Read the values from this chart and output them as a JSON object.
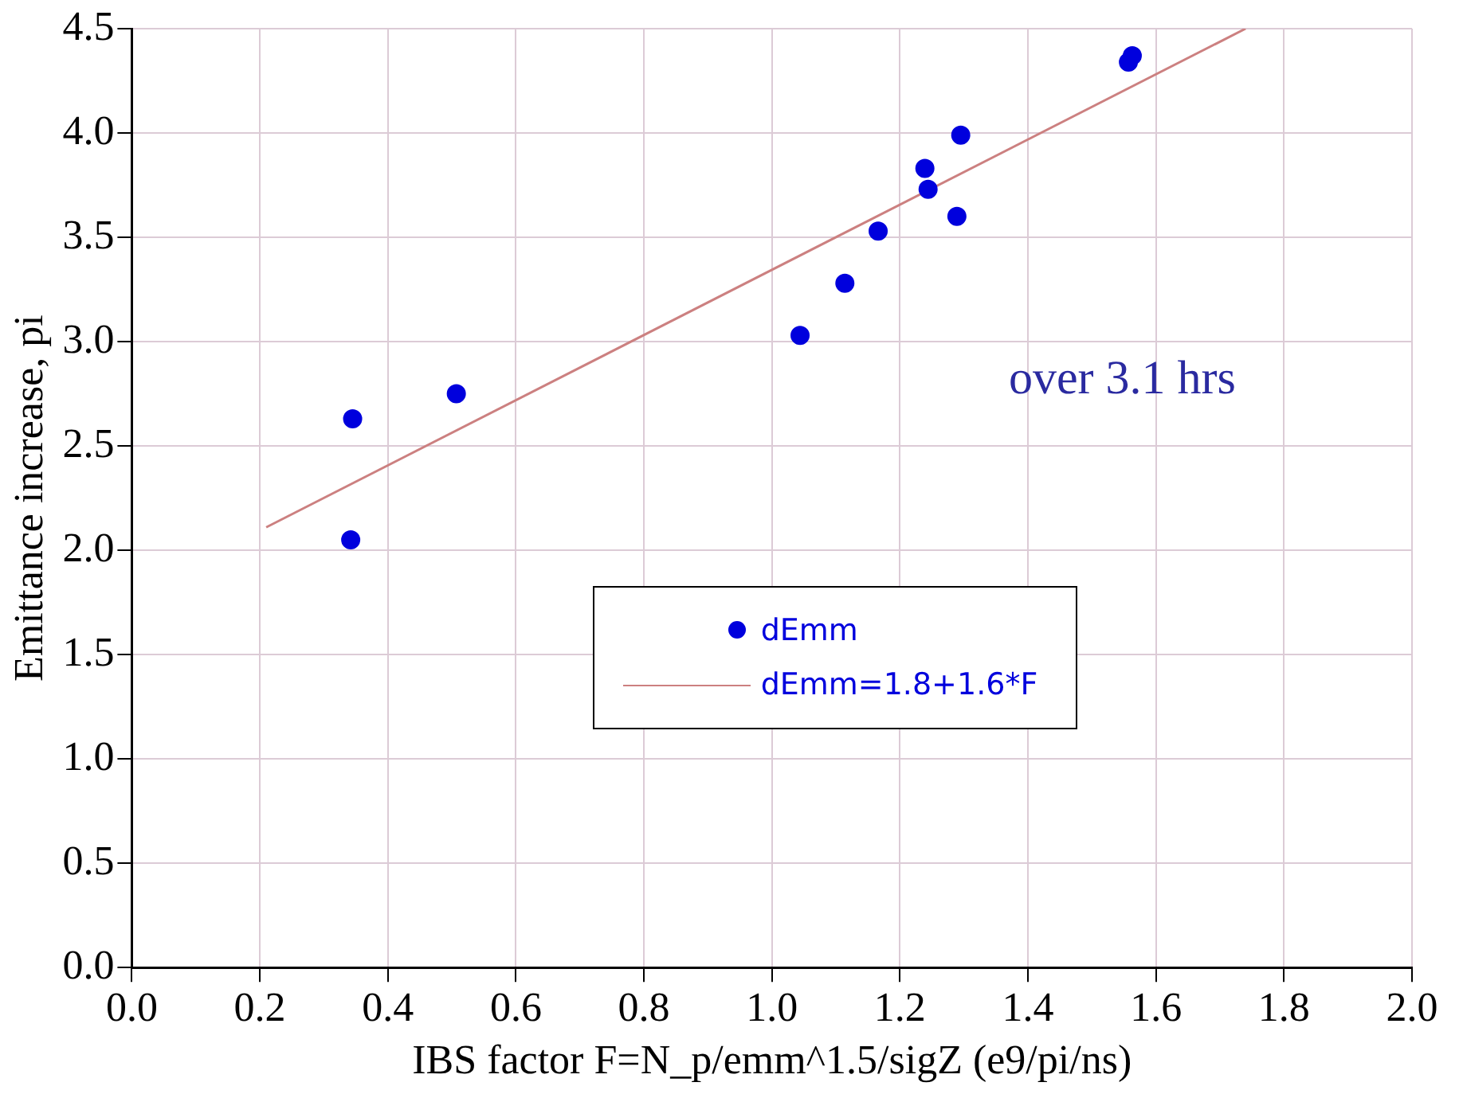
{
  "chart_data": {
    "type": "scatter",
    "xlabel": "IBS factor F=N_p/emm^1.5/sigZ (e9/pi/ns)",
    "ylabel": "Emittance increase, pi",
    "annotations": [
      "over 3.1 hrs"
    ],
    "series": [
      {
        "name": "dEmm",
        "type": "scatter",
        "color": "#0000dd",
        "marker": "circle",
        "x": [
          0.345,
          0.342,
          0.507,
          1.044,
          1.114,
          1.166,
          1.239,
          1.244,
          1.289,
          1.295,
          1.557,
          1.563
        ],
        "values": [
          2.63,
          2.05,
          2.75,
          3.03,
          3.28,
          3.53,
          3.83,
          3.73,
          3.6,
          3.99,
          4.34,
          4.37
        ]
      },
      {
        "name": "dEmm=1.8+1.6*F",
        "type": "line",
        "color": "#cc8080",
        "marker": "none",
        "line_style": "solid",
        "x": [
          0.21,
          1.74
        ],
        "values": [
          2.11,
          4.5
        ]
      }
    ],
    "xlim": [
      0,
      2
    ],
    "xticks": [
      {
        "value": 0,
        "label": "0.0"
      },
      {
        "value": 0.2,
        "label": "0.2"
      },
      {
        "value": 0.4,
        "label": "0.4"
      },
      {
        "value": 0.6,
        "label": "0.6"
      },
      {
        "value": 0.8,
        "label": "0.8"
      },
      {
        "value": 1,
        "label": "1.0"
      },
      {
        "value": 1.2,
        "label": "1.2"
      },
      {
        "value": 1.4,
        "label": "1.4"
      },
      {
        "value": 1.6,
        "label": "1.6"
      },
      {
        "value": 1.8,
        "label": "1.8"
      },
      {
        "value": 2,
        "label": "2.0"
      }
    ],
    "ylim": [
      0,
      4.5
    ],
    "yticks": [
      {
        "value": 0,
        "label": "0.0"
      },
      {
        "value": 0.5,
        "label": "0.5"
      },
      {
        "value": 1,
        "label": "1.0"
      },
      {
        "value": 1.5,
        "label": "1.5"
      },
      {
        "value": 2,
        "label": "2.0"
      },
      {
        "value": 2.5,
        "label": "2.5"
      },
      {
        "value": 3,
        "label": "3.0"
      },
      {
        "value": 3.5,
        "label": "3.5"
      },
      {
        "value": 4,
        "label": "4.0"
      },
      {
        "value": 4.5,
        "label": "4.5"
      }
    ],
    "grid": true,
    "legend": "bottom"
  }
}
